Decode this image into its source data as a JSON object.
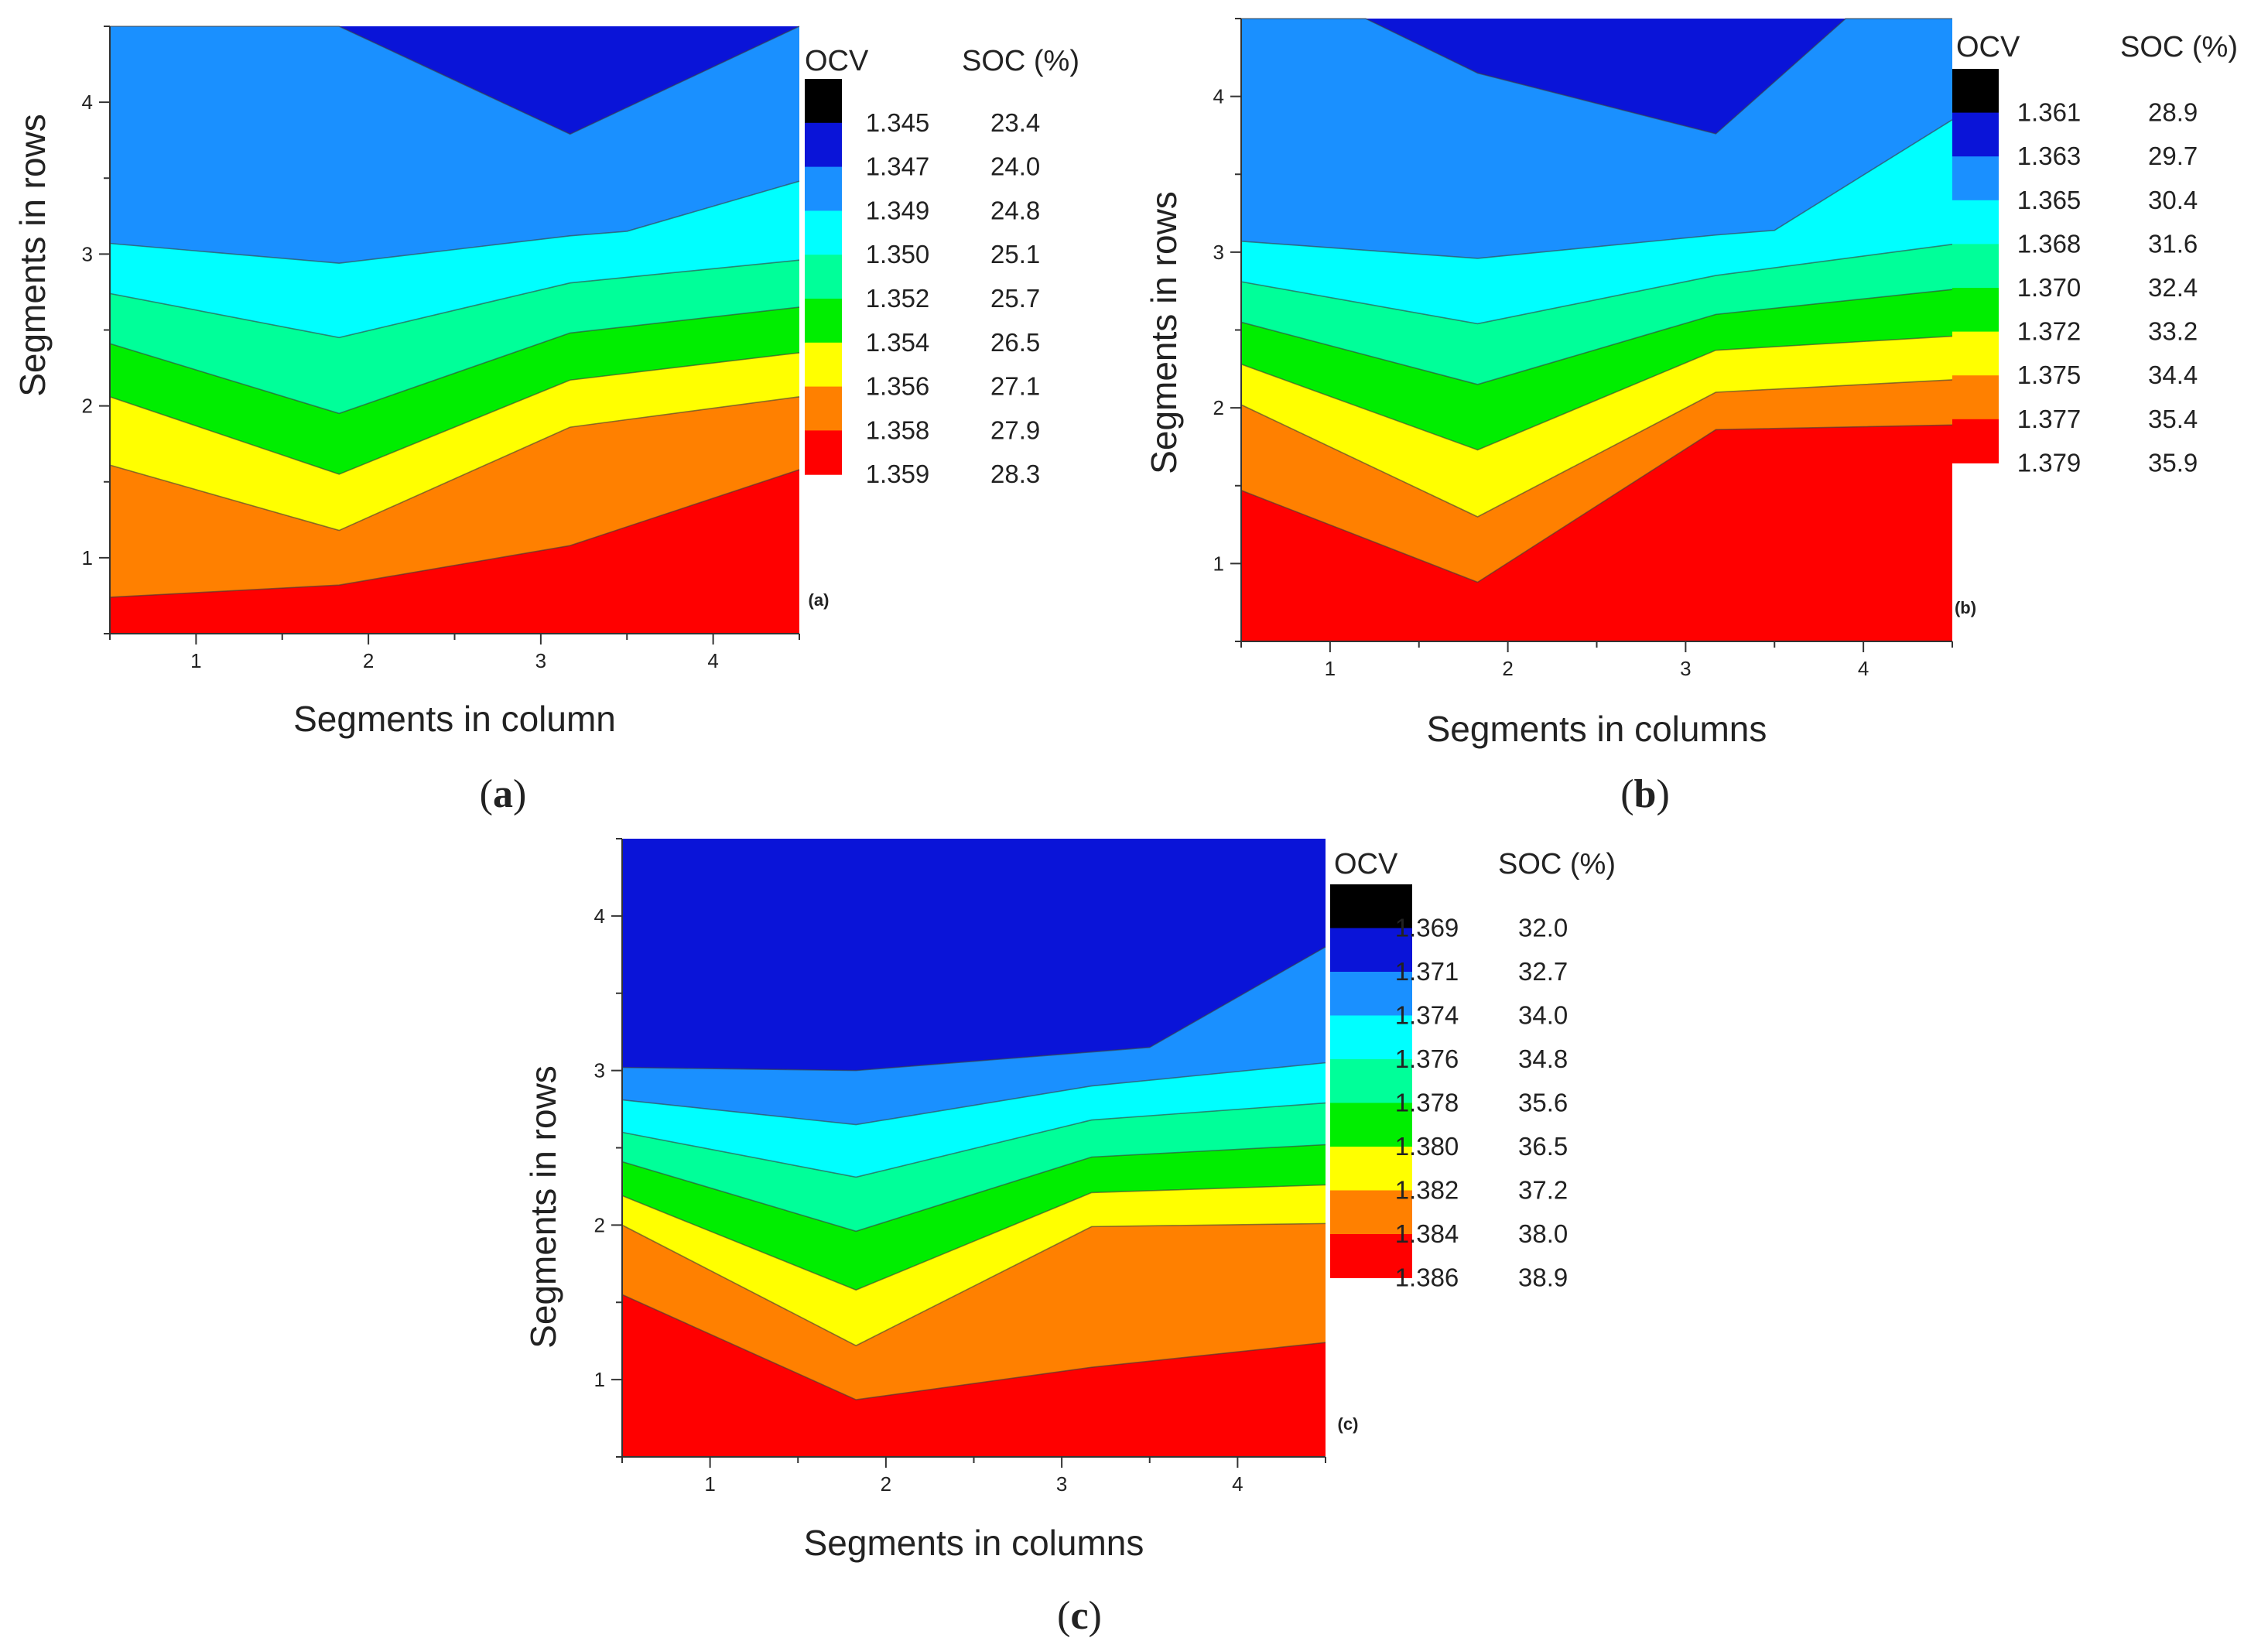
{
  "chart_data": [
    {
      "type": "contour",
      "panel_tag": "(a)",
      "caption_letter": "a",
      "xlabel": "Segments in column",
      "ylabel": "Segments in rows",
      "xlim": [
        0.5,
        4.5
      ],
      "ylim": [
        0.5,
        4.5
      ],
      "x_ticks": [
        1,
        2,
        3,
        4
      ],
      "y_ticks": [
        1,
        2,
        3,
        4
      ],
      "legend": {
        "ocv_header": "OCV",
        "soc_header": "SOC (%)",
        "levels": [
          {
            "ocv": "1.345",
            "soc": "23.4"
          },
          {
            "ocv": "1.347",
            "soc": "24.0"
          },
          {
            "ocv": "1.349",
            "soc": "24.8"
          },
          {
            "ocv": "1.350",
            "soc": "25.1"
          },
          {
            "ocv": "1.352",
            "soc": "25.7"
          },
          {
            "ocv": "1.354",
            "soc": "26.5"
          },
          {
            "ocv": "1.356",
            "soc": "27.1"
          },
          {
            "ocv": "1.358",
            "soc": "27.9"
          },
          {
            "ocv": "1.359",
            "soc": "28.3"
          }
        ]
      },
      "band_colors": [
        "#ff0000",
        "#ff8000",
        "#ffff00",
        "#00ee00",
        "#00ff99",
        "#00ffff",
        "#1a90ff",
        "#0a14d8"
      ],
      "contour_lines": [
        [
          [
            0.5,
            0.74
          ],
          [
            1.83,
            0.82
          ],
          [
            3.17,
            1.08
          ],
          [
            4.5,
            1.58
          ]
        ],
        [
          [
            0.5,
            1.61
          ],
          [
            1.83,
            1.18
          ],
          [
            3.17,
            1.86
          ],
          [
            4.5,
            2.06
          ]
        ],
        [
          [
            0.5,
            2.06
          ],
          [
            1.83,
            1.55
          ],
          [
            3.17,
            2.17
          ],
          [
            4.5,
            2.35
          ]
        ],
        [
          [
            0.5,
            2.41
          ],
          [
            1.83,
            1.95
          ],
          [
            3.17,
            2.48
          ],
          [
            4.5,
            2.65
          ]
        ],
        [
          [
            0.5,
            2.74
          ],
          [
            1.83,
            2.45
          ],
          [
            3.17,
            2.81
          ],
          [
            4.5,
            2.96
          ]
        ],
        [
          [
            0.5,
            3.07
          ],
          [
            1.83,
            2.94
          ],
          [
            3.17,
            3.12
          ],
          [
            3.5,
            3.15
          ],
          [
            4.5,
            3.48
          ]
        ],
        [
          [
            0.5,
            4.5
          ],
          [
            1.83,
            4.5
          ],
          [
            3.17,
            3.79
          ],
          [
            4.5,
            4.5
          ]
        ]
      ]
    },
    {
      "type": "contour",
      "panel_tag": "(b)",
      "caption_letter": "b",
      "xlabel": "Segments in columns",
      "ylabel": "Segments in rows",
      "xlim": [
        0.5,
        4.5
      ],
      "ylim": [
        0.5,
        4.5
      ],
      "x_ticks": [
        1,
        2,
        3,
        4
      ],
      "y_ticks": [
        1,
        2,
        3,
        4
      ],
      "legend": {
        "ocv_header": "OCV",
        "soc_header": "SOC (%)",
        "levels": [
          {
            "ocv": "1.361",
            "soc": "28.9"
          },
          {
            "ocv": "1.363",
            "soc": "29.7"
          },
          {
            "ocv": "1.365",
            "soc": "30.4"
          },
          {
            "ocv": "1.368",
            "soc": "31.6"
          },
          {
            "ocv": "1.370",
            "soc": "32.4"
          },
          {
            "ocv": "1.372",
            "soc": "33.2"
          },
          {
            "ocv": "1.375",
            "soc": "34.4"
          },
          {
            "ocv": "1.377",
            "soc": "35.4"
          },
          {
            "ocv": "1.379",
            "soc": "35.9"
          }
        ]
      },
      "band_colors": [
        "#ff0000",
        "#ff8000",
        "#ffff00",
        "#00ee00",
        "#00ff99",
        "#00ffff",
        "#1a90ff",
        "#0a14d8"
      ],
      "contour_lines": [
        [
          [
            0.5,
            1.47
          ],
          [
            1.83,
            0.88
          ],
          [
            3.17,
            1.86
          ],
          [
            4.5,
            1.89
          ]
        ],
        [
          [
            0.5,
            2.02
          ],
          [
            1.83,
            1.3
          ],
          [
            3.17,
            2.1
          ],
          [
            4.5,
            2.18
          ]
        ],
        [
          [
            0.5,
            2.28
          ],
          [
            1.83,
            1.73
          ],
          [
            3.17,
            2.37
          ],
          [
            4.5,
            2.46
          ]
        ],
        [
          [
            0.5,
            2.55
          ],
          [
            1.83,
            2.15
          ],
          [
            3.17,
            2.6
          ],
          [
            4.5,
            2.76
          ]
        ],
        [
          [
            0.5,
            2.81
          ],
          [
            1.83,
            2.54
          ],
          [
            3.17,
            2.85
          ],
          [
            4.5,
            3.05
          ]
        ],
        [
          [
            0.5,
            3.07
          ],
          [
            1.83,
            2.96
          ],
          [
            3.17,
            3.11
          ],
          [
            3.5,
            3.14
          ],
          [
            4.5,
            3.85
          ]
        ],
        [
          [
            0.5,
            4.5
          ],
          [
            1.2,
            4.5
          ],
          [
            1.83,
            4.15
          ],
          [
            3.17,
            3.76
          ],
          [
            3.9,
            4.5
          ],
          [
            4.5,
            4.5
          ]
        ]
      ]
    },
    {
      "type": "contour",
      "panel_tag": "(c)",
      "caption_letter": "c",
      "xlabel": "Segments in columns",
      "ylabel": "Segments in rows",
      "xlim": [
        0.5,
        4.5
      ],
      "ylim": [
        0.5,
        4.5
      ],
      "x_ticks": [
        1,
        2,
        3,
        4
      ],
      "y_ticks": [
        1,
        2,
        3,
        4
      ],
      "legend": {
        "ocv_header": "OCV",
        "soc_header": "SOC (%)",
        "levels": [
          {
            "ocv": "1.369",
            "soc": "32.0"
          },
          {
            "ocv": "1.371",
            "soc": "32.7"
          },
          {
            "ocv": "1.374",
            "soc": "34.0"
          },
          {
            "ocv": "1.376",
            "soc": "34.8"
          },
          {
            "ocv": "1.378",
            "soc": "35.6"
          },
          {
            "ocv": "1.380",
            "soc": "36.5"
          },
          {
            "ocv": "1.382",
            "soc": "37.2"
          },
          {
            "ocv": "1.384",
            "soc": "38.0"
          },
          {
            "ocv": "1.386",
            "soc": "38.9"
          }
        ]
      },
      "band_colors": [
        "#ff0000",
        "#ff8000",
        "#ffff00",
        "#00ee00",
        "#00ff99",
        "#00ffff",
        "#1a90ff",
        "#0a14d8"
      ],
      "contour_lines": [
        [
          [
            0.5,
            1.55
          ],
          [
            1.83,
            0.87
          ],
          [
            3.17,
            1.08
          ],
          [
            4.5,
            1.24
          ]
        ],
        [
          [
            0.5,
            2.0
          ],
          [
            1.83,
            1.22
          ],
          [
            3.17,
            1.99
          ],
          [
            4.5,
            2.01
          ]
        ],
        [
          [
            0.5,
            2.19
          ],
          [
            1.83,
            1.58
          ],
          [
            3.17,
            2.21
          ],
          [
            4.5,
            2.26
          ]
        ],
        [
          [
            0.5,
            2.41
          ],
          [
            1.83,
            1.96
          ],
          [
            3.17,
            2.44
          ],
          [
            4.5,
            2.52
          ]
        ],
        [
          [
            0.5,
            2.6
          ],
          [
            1.83,
            2.31
          ],
          [
            3.17,
            2.68
          ],
          [
            4.5,
            2.79
          ]
        ],
        [
          [
            0.5,
            2.81
          ],
          [
            1.83,
            2.65
          ],
          [
            3.17,
            2.9
          ],
          [
            4.5,
            3.05
          ]
        ],
        [
          [
            0.5,
            3.02
          ],
          [
            1.83,
            3.0
          ],
          [
            3.17,
            3.12
          ],
          [
            3.5,
            3.15
          ],
          [
            4.5,
            3.8
          ]
        ]
      ]
    }
  ]
}
